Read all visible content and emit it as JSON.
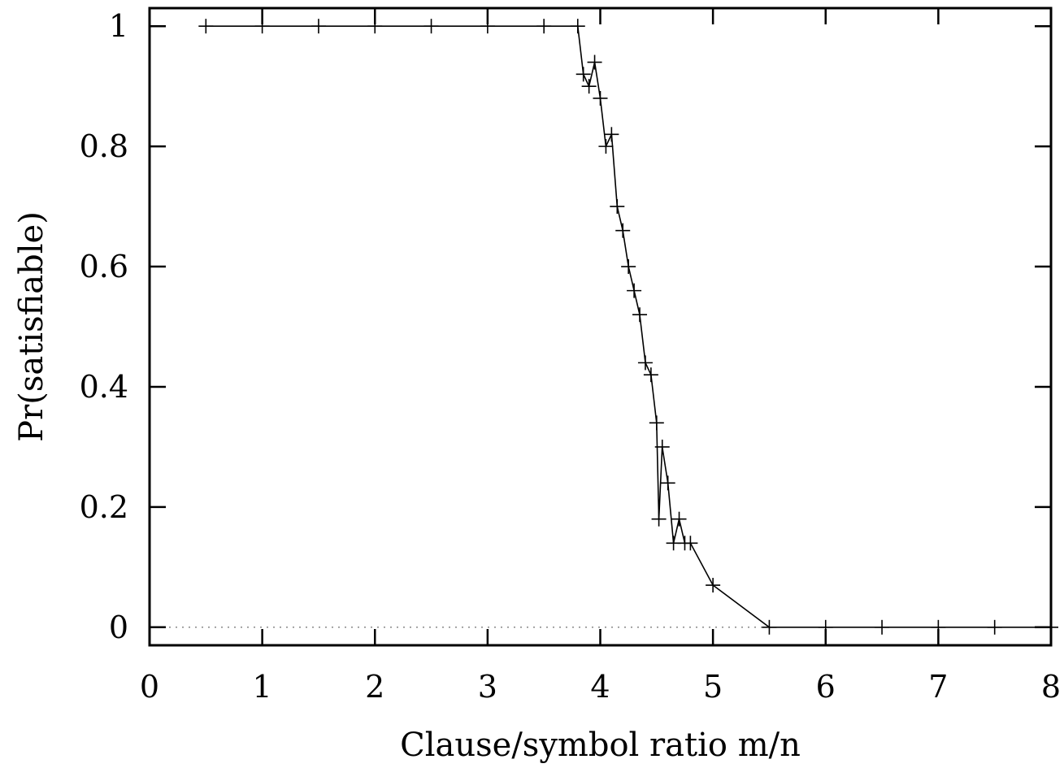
{
  "chart_data": {
    "type": "line",
    "title": "",
    "xlabel": "Clause/symbol ratio m/n",
    "ylabel": "Pr(satisfiable)",
    "xlim": [
      0,
      8
    ],
    "ylim": [
      -0.03,
      1.03
    ],
    "x_ticks": [
      0,
      1,
      2,
      3,
      4,
      5,
      6,
      7,
      8
    ],
    "x_tick_labels": [
      "0",
      "1",
      "2",
      "3",
      "4",
      "5",
      "6",
      "7",
      "8"
    ],
    "y_ticks": [
      0,
      0.2,
      0.4,
      0.6,
      0.8,
      1
    ],
    "y_tick_labels": [
      "0",
      "0.2",
      "0.4",
      "0.6",
      "0.8",
      "1"
    ],
    "grid": false,
    "reference_line": {
      "y": 0,
      "style": "dotted"
    },
    "marker": "plus",
    "series": [
      {
        "x": [
          0.5,
          1.0,
          1.5,
          2.0,
          2.5,
          3.0,
          3.5,
          3.8,
          3.85,
          3.9,
          3.95,
          4.0,
          4.05,
          4.1,
          4.15,
          4.2,
          4.25,
          4.3,
          4.35,
          4.4,
          4.45,
          4.5,
          4.52,
          4.55,
          4.6,
          4.65,
          4.7,
          4.75,
          4.8,
          5.0,
          5.5,
          6.0,
          6.5,
          7.0,
          7.5,
          8.0
        ],
        "y": [
          1.0,
          1.0,
          1.0,
          1.0,
          1.0,
          1.0,
          1.0,
          1.0,
          0.92,
          0.9,
          0.94,
          0.88,
          0.8,
          0.82,
          0.7,
          0.66,
          0.6,
          0.56,
          0.52,
          0.44,
          0.42,
          0.34,
          0.18,
          0.3,
          0.24,
          0.14,
          0.18,
          0.14,
          0.14,
          0.07,
          0.0,
          0.0,
          0.0,
          0.0,
          0.0,
          0.0
        ]
      }
    ]
  }
}
